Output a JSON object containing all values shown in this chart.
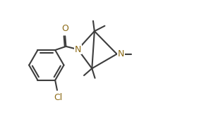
{
  "bg_color": "#ffffff",
  "line_color": "#3d3d3d",
  "atom_color": "#8B6914",
  "bond_width": 1.5,
  "font_size": 8.0,
  "fig_width": 2.82,
  "fig_height": 1.66,
  "dpi": 100,
  "xlim": [
    -0.5,
    11.5
  ],
  "ylim": [
    0.2,
    6.8
  ]
}
